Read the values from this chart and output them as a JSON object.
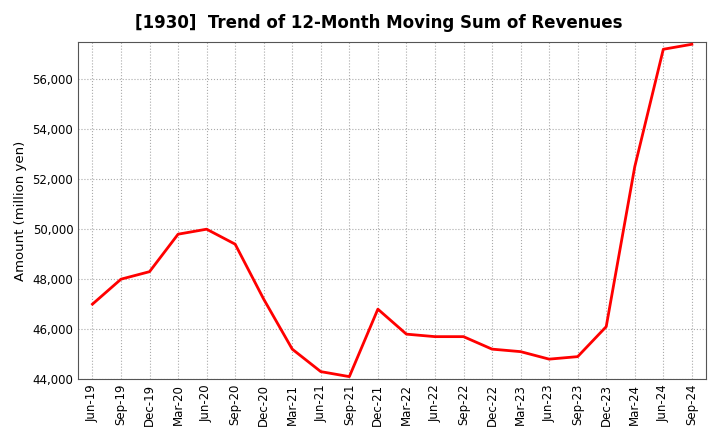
{
  "title": "[1930]  Trend of 12-Month Moving Sum of Revenues",
  "ylabel": "Amount (million yen)",
  "line_color": "#ff0000",
  "line_width": 2.0,
  "background_color": "#ffffff",
  "grid_color": "#aaaaaa",
  "ylim": [
    44000,
    57500
  ],
  "yticks": [
    44000,
    46000,
    48000,
    50000,
    52000,
    54000,
    56000
  ],
  "x_labels": [
    "Jun-19",
    "Sep-19",
    "Dec-19",
    "Mar-20",
    "Jun-20",
    "Sep-20",
    "Dec-20",
    "Mar-21",
    "Jun-21",
    "Sep-21",
    "Dec-21",
    "Mar-22",
    "Jun-22",
    "Sep-22",
    "Dec-22",
    "Mar-23",
    "Jun-23",
    "Sep-23",
    "Dec-23",
    "Mar-24",
    "Jun-24",
    "Sep-24"
  ],
  "values": [
    47000,
    48000,
    48300,
    49800,
    50000,
    49400,
    47200,
    45200,
    44300,
    44100,
    46800,
    45800,
    45700,
    45700,
    45200,
    45100,
    44800,
    44900,
    46100,
    52500,
    57200,
    57400
  ]
}
